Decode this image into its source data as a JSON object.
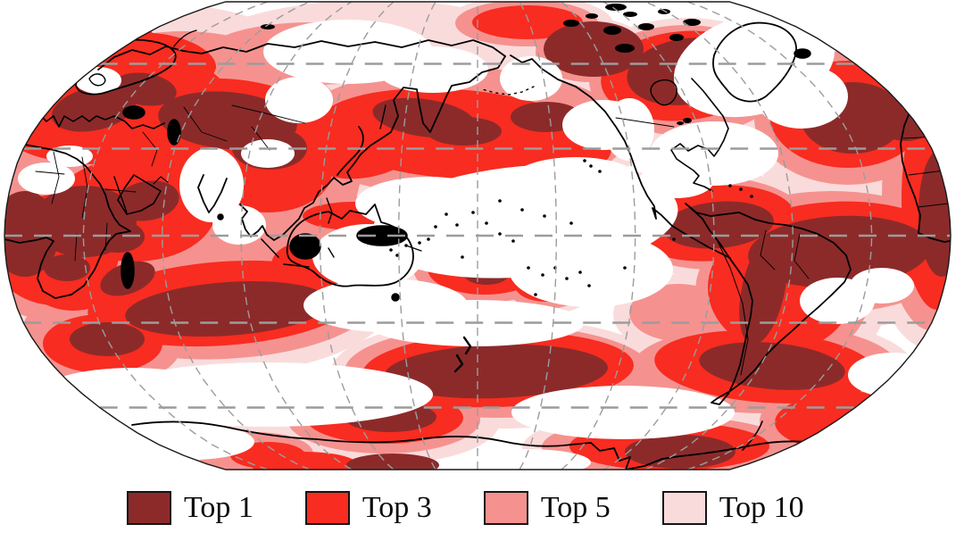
{
  "map": {
    "kind": "world-map-temperature-rank-shading",
    "projection": "robinson-pacific-centered",
    "background_color": "#ffffff",
    "graticule_color": "#9c9c9c",
    "coastline_color": "#000000",
    "outline_color": "#1a1a1a"
  },
  "legend": {
    "items": [
      {
        "label": "Top 1",
        "color": "#8c2a2a"
      },
      {
        "label": "Top 3",
        "color": "#f82c20"
      },
      {
        "label": "Top 5",
        "color": "#f5928f"
      },
      {
        "label": "Top 10",
        "color": "#fadbdb"
      }
    ]
  }
}
